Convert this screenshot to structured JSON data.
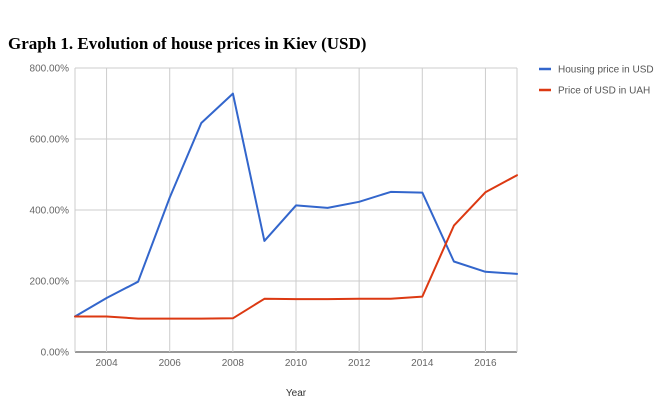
{
  "chart_data": {
    "type": "line",
    "title": "Graph 1. Evolution of house prices in Kiev (USD)",
    "xlabel": "Year",
    "ylabel": "",
    "x": [
      2003,
      2004,
      2005,
      2006,
      2007,
      2008,
      2009,
      2010,
      2011,
      2012,
      2013,
      2014,
      2015,
      2016,
      2017
    ],
    "xlim": [
      2003,
      2017
    ],
    "ylim": [
      0,
      800
    ],
    "x_ticks": [
      2004,
      2006,
      2008,
      2010,
      2012,
      2014,
      2016
    ],
    "y_ticks": [
      0,
      200,
      400,
      600,
      800
    ],
    "y_tick_labels": [
      "0.00%",
      "200.00%",
      "400.00%",
      "600.00%",
      "800.00%"
    ],
    "grid": true,
    "legend_position": "right",
    "series": [
      {
        "name": "Housing price in USD",
        "color": "#3366cc",
        "values": [
          100,
          152,
          198,
          435,
          645,
          728,
          313,
          413,
          406,
          423,
          451,
          449,
          255,
          226,
          220
        ]
      },
      {
        "name": "Price of USD in UAH",
        "color": "#dc3912",
        "values": [
          100,
          100,
          94,
          94,
          94,
          95,
          150,
          149,
          149,
          150,
          150,
          156,
          356,
          450,
          498
        ]
      }
    ]
  }
}
